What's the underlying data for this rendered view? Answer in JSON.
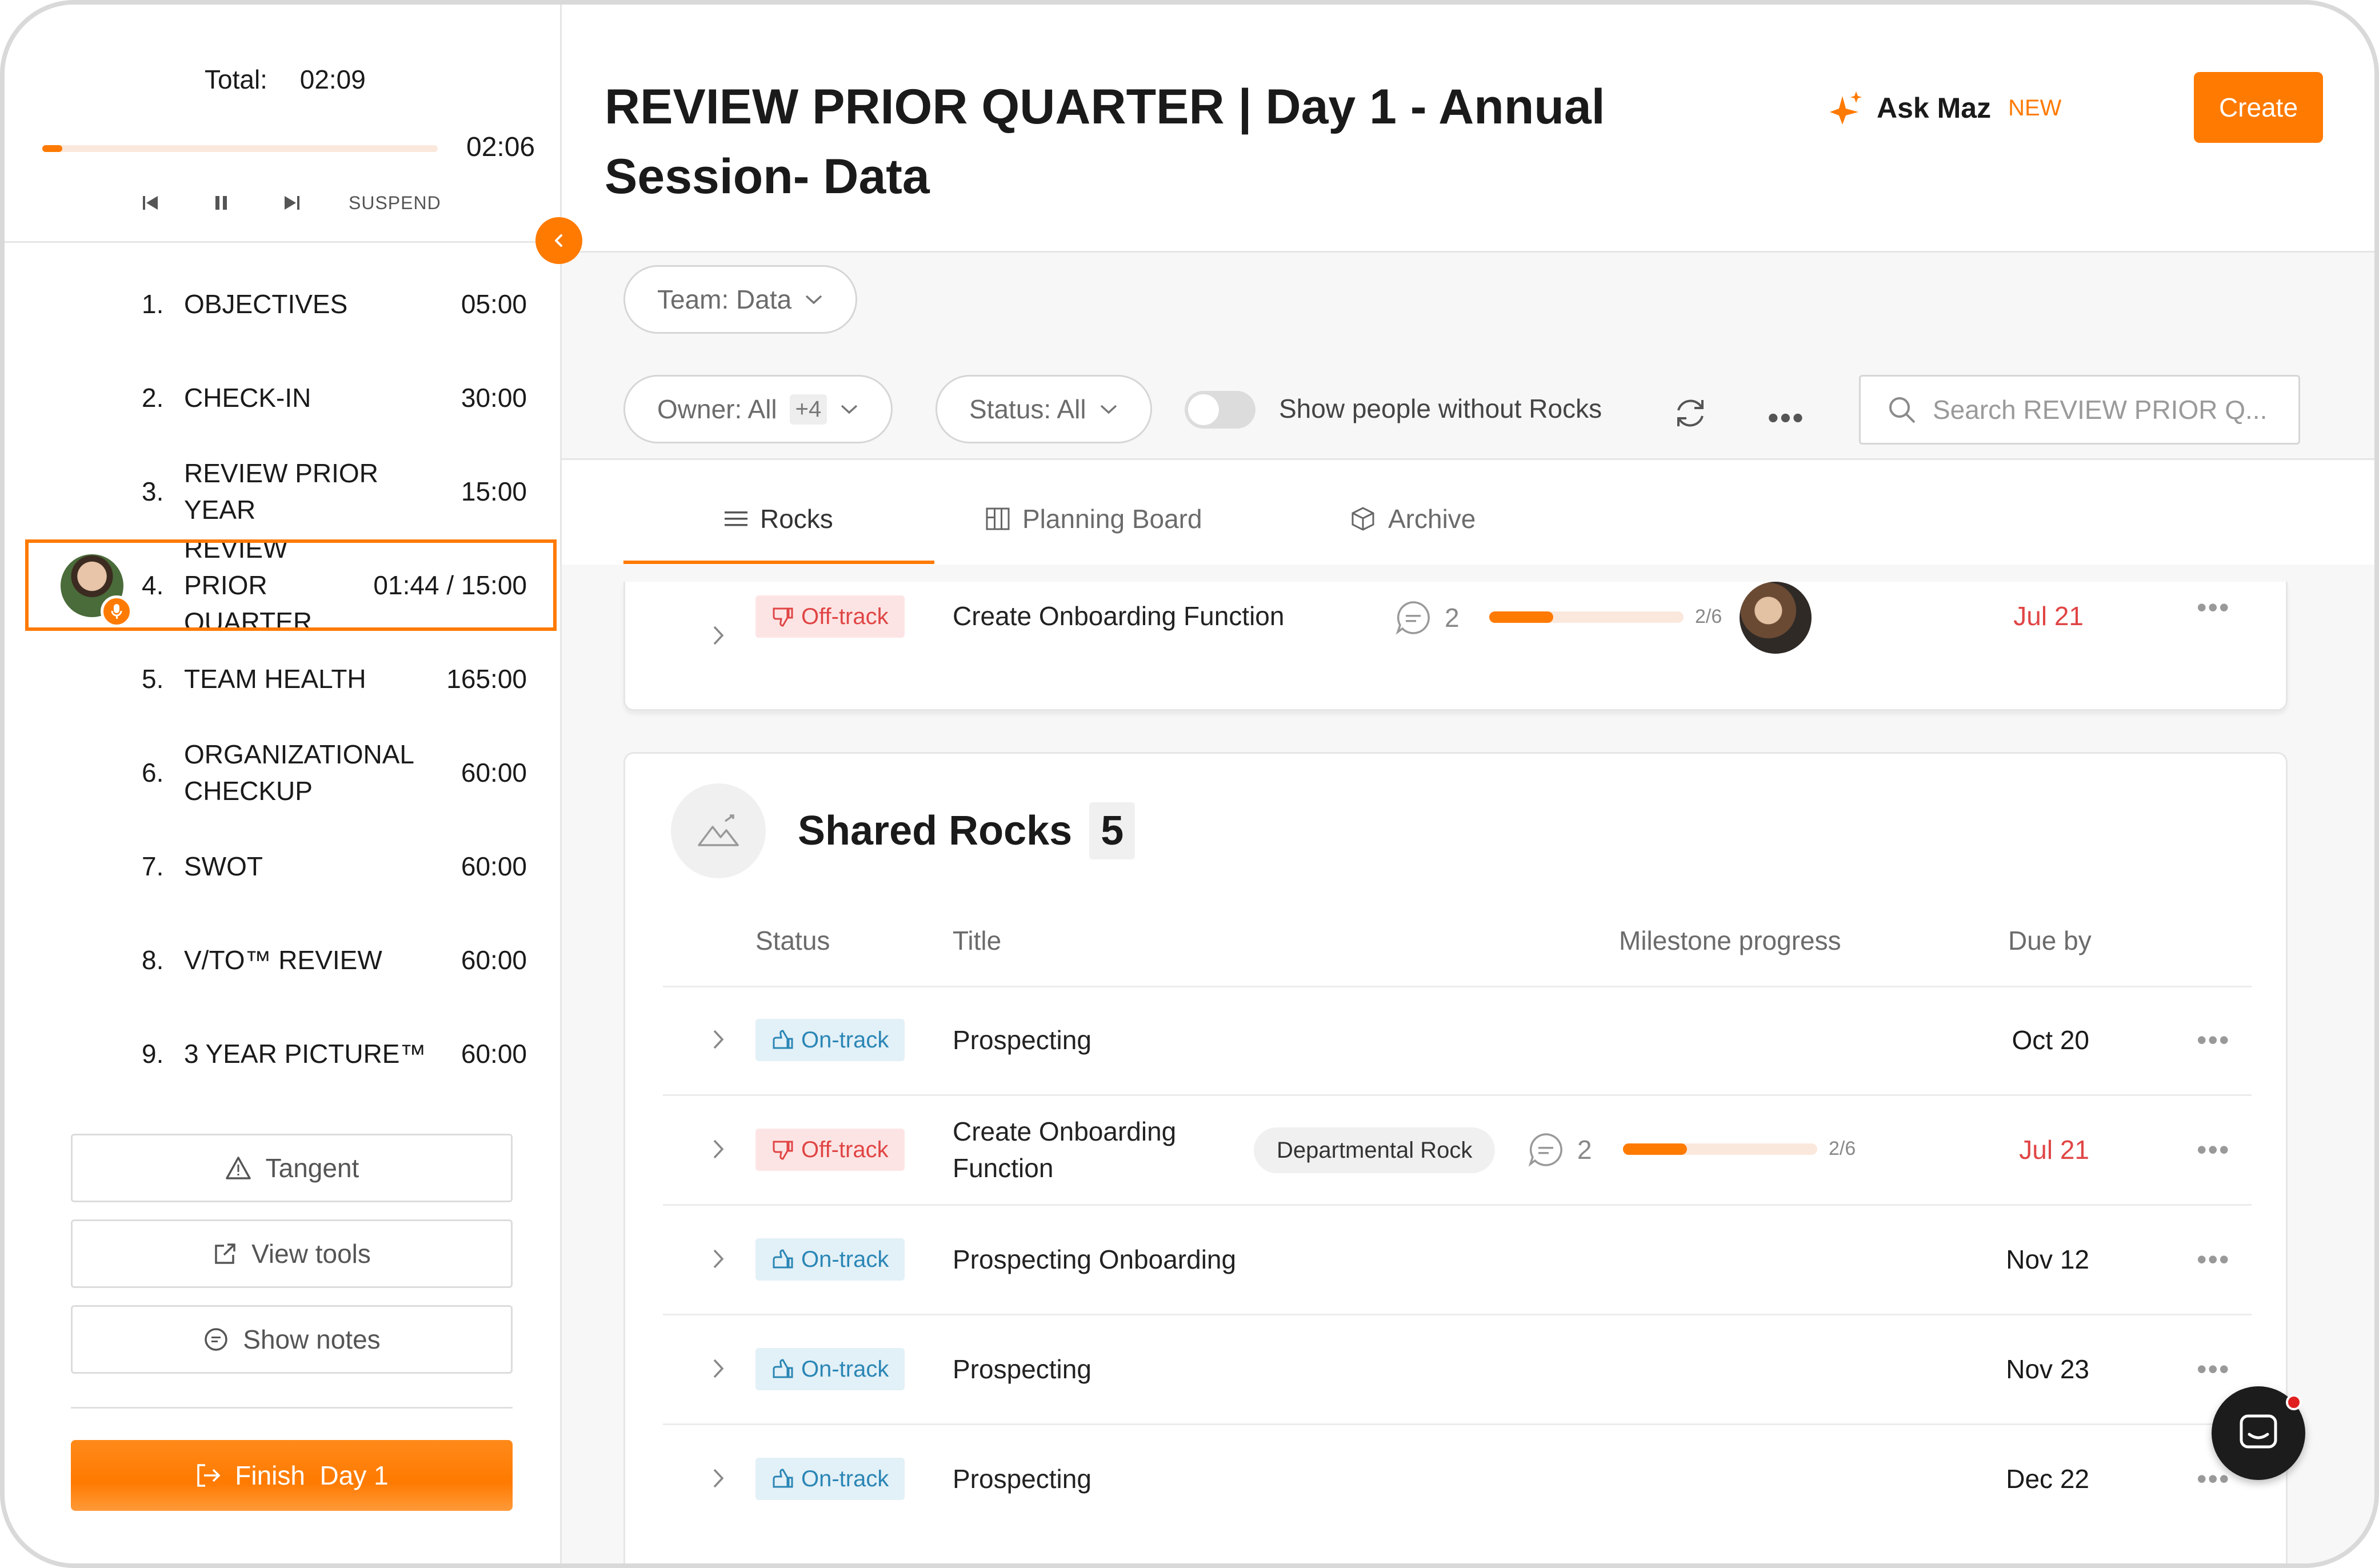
{
  "timer": {
    "total_label": "Total:",
    "total_value": "02:09",
    "remaining": "02:06",
    "progress_fraction": 0.05,
    "suspend_label": "SUSPEND"
  },
  "agenda": [
    {
      "num": "1.",
      "title": "OBJECTIVES",
      "time": "05:00"
    },
    {
      "num": "2.",
      "title": "CHECK-IN",
      "time": "30:00"
    },
    {
      "num": "3.",
      "title": "REVIEW PRIOR YEAR",
      "time": "15:00"
    },
    {
      "num": "4.",
      "title": "REVIEW PRIOR QUARTER",
      "time": "01:44 / 15:00",
      "active": true
    },
    {
      "num": "5.",
      "title": "TEAM HEALTH",
      "time": "165:00"
    },
    {
      "num": "6.",
      "title": "ORGANIZATIONAL CHECKUP",
      "time": "60:00"
    },
    {
      "num": "7.",
      "title": "SWOT",
      "time": "60:00"
    },
    {
      "num": "8.",
      "title": "V/TO™ REVIEW",
      "time": "60:00"
    },
    {
      "num": "9.",
      "title": "3 YEAR PICTURE™",
      "time": "60:00"
    }
  ],
  "sidebar_buttons": {
    "tangent": "Tangent",
    "view_tools": "View tools",
    "show_notes": "Show notes",
    "finish": "Finish  Day 1"
  },
  "header": {
    "title": "REVIEW PRIOR QUARTER | Day 1 - Annual Session- Data",
    "ask_maz": "Ask Maz",
    "ask_maz_badge": "NEW",
    "create": "Create"
  },
  "filters": {
    "team": "Team: Data",
    "owner": "Owner: All",
    "owner_badge": "+4",
    "status": "Status: All",
    "toggle_label": "Show people without Rocks",
    "search_placeholder": "Search REVIEW PRIOR Q..."
  },
  "tabs": {
    "rocks": "Rocks",
    "planning": "Planning Board",
    "archive": "Archive"
  },
  "top_row": {
    "status": "Off-track",
    "title": "Create Onboarding Function",
    "comments": "2",
    "milestones": "2/6",
    "milestone_fraction": 0.33,
    "due": "Jul 21"
  },
  "shared": {
    "title": "Shared Rocks",
    "count": "5",
    "columns": {
      "status": "Status",
      "title": "Title",
      "milestone": "Milestone progress",
      "due": "Due by"
    },
    "rows": [
      {
        "status": "On-track",
        "title": "Prospecting",
        "due": "Oct 20"
      },
      {
        "status": "Off-track",
        "title": "Create Onboarding Function",
        "tag": "Departmental Rock",
        "comments": "2",
        "milestones": "2/6",
        "milestone_fraction": 0.33,
        "due": "Jul 21"
      },
      {
        "status": "On-track",
        "title": "Prospecting Onboarding",
        "due": "Nov 12"
      },
      {
        "status": "On-track",
        "title": "Prospecting",
        "due": "Nov 23"
      },
      {
        "status": "On-track",
        "title": "Prospecting",
        "due": "Dec 22"
      }
    ]
  },
  "colors": {
    "accent": "#ff7a00",
    "on_track": "#2a86b5",
    "off_track": "#e04545"
  }
}
